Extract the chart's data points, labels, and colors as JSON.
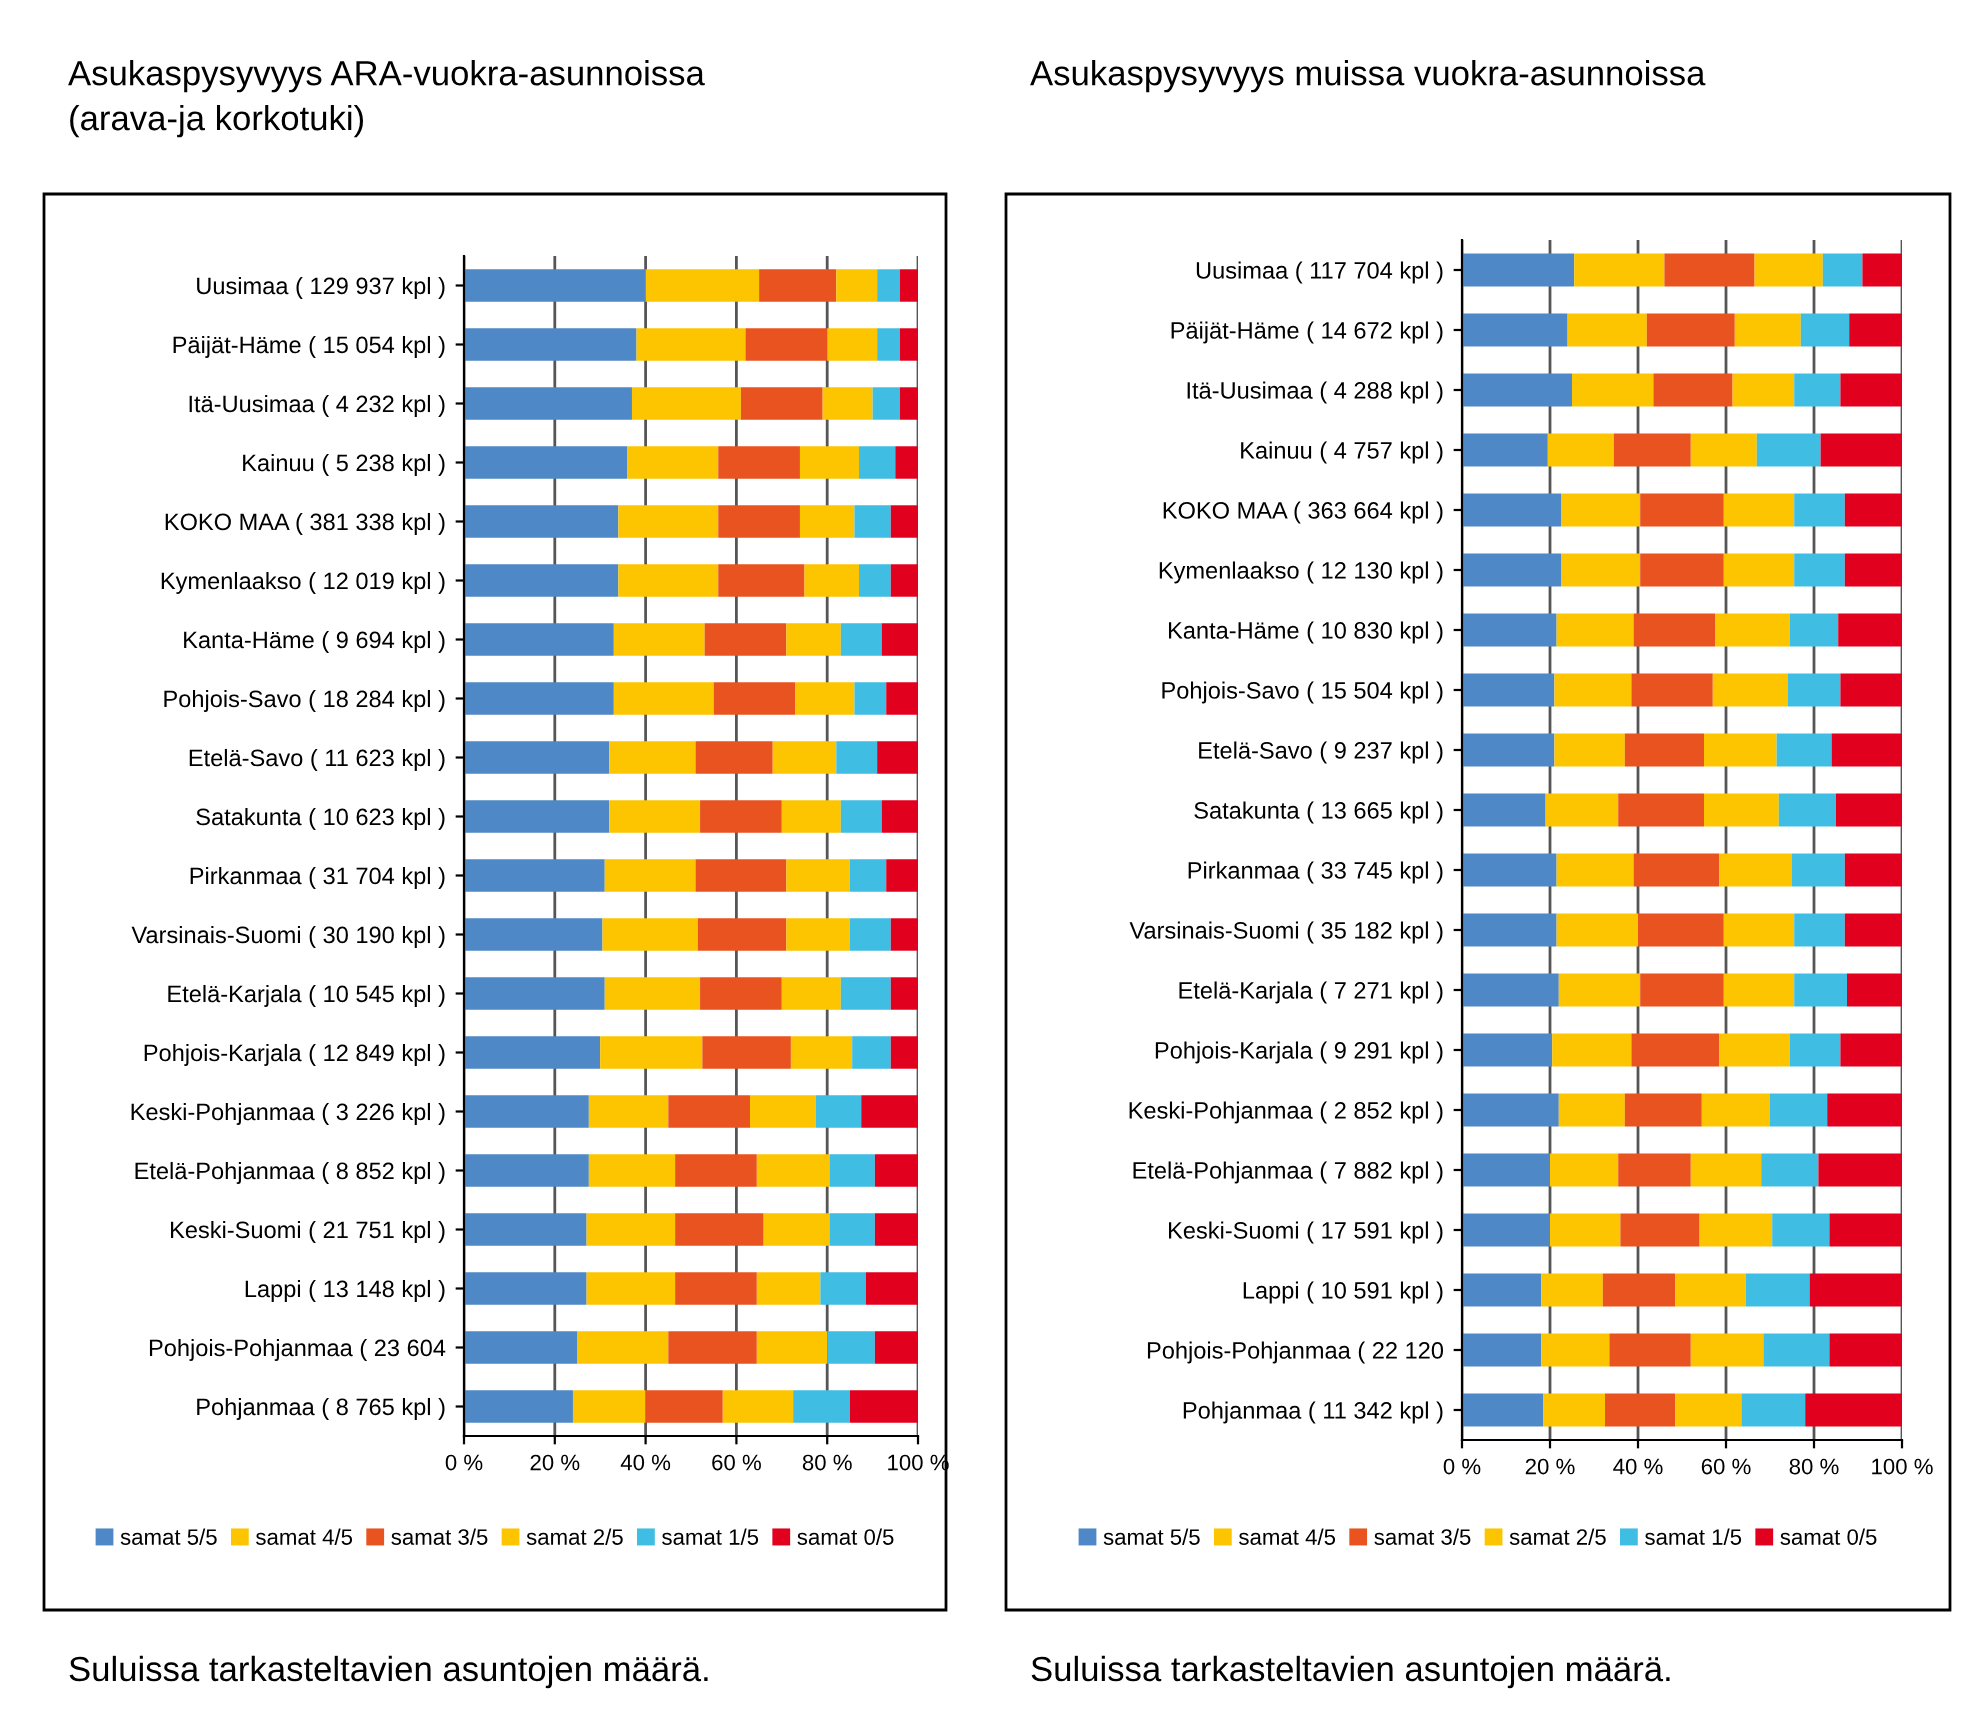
{
  "chart_data": [
    {
      "type": "bar",
      "orientation": "horizontal",
      "stacked": true,
      "title": "Asukaspysyvyys ARA-vuokra-asunnoissa\n(arava-ja korkotuki)",
      "categories": [
        "Uusimaa ( 129 937 kpl )",
        "Päijät-Häme ( 15 054 kpl )",
        "Itä-Uusimaa ( 4 232 kpl )",
        "Kainuu ( 5 238 kpl )",
        "KOKO MAA ( 381 338 kpl )",
        "Kymenlaakso ( 12 019 kpl )",
        "Kanta-Häme ( 9 694 kpl )",
        "Pohjois-Savo ( 18 284 kpl )",
        "Etelä-Savo ( 11 623 kpl )",
        "Satakunta ( 10 623 kpl )",
        "Pirkanmaa ( 31 704 kpl )",
        "Varsinais-Suomi ( 30 190 kpl )",
        "Etelä-Karjala ( 10 545 kpl )",
        "Pohjois-Karjala ( 12 849 kpl )",
        "Keski-Pohjanmaa ( 3 226 kpl )",
        "Etelä-Pohjanmaa ( 8 852 kpl )",
        "Keski-Suomi ( 21 751 kpl )",
        "Lappi ( 13 148 kpl )",
        "Pohjois-Pohjanmaa ( 23 604",
        "Pohjanmaa ( 8 765 kpl )"
      ],
      "series": [
        {
          "name": "samat 5/5",
          "color": "#4f88c6",
          "values": [
            40,
            38,
            37,
            36,
            34,
            34,
            33,
            33,
            32,
            32,
            31,
            30.5,
            31,
            30,
            27.5,
            27.5,
            27,
            27,
            25,
            24
          ]
        },
        {
          "name": "samat 4/5",
          "color": "#fcc500",
          "values": [
            25,
            24,
            24,
            20,
            22,
            22,
            20,
            22,
            19,
            20,
            20,
            21,
            21,
            22.5,
            17.5,
            19,
            19.5,
            19.5,
            20,
            16
          ]
        },
        {
          "name": "samat 3/5",
          "color": "#e8531f",
          "values": [
            17,
            18,
            18,
            18,
            18,
            19,
            18,
            18,
            17,
            18,
            20,
            19.5,
            18,
            19.5,
            18,
            18,
            19.5,
            18,
            19.5,
            17
          ]
        },
        {
          "name": "samat 2/5",
          "color": "#fcc500",
          "values": [
            9,
            11,
            11,
            13,
            12,
            12,
            12,
            13,
            14,
            13,
            14,
            14,
            13,
            13.5,
            14.5,
            16,
            14.5,
            14,
            15.5,
            15.5
          ]
        },
        {
          "name": "samat 1/5",
          "color": "#3fbde3",
          "values": [
            5,
            5,
            6,
            8,
            8,
            7,
            9,
            7,
            9,
            9,
            8,
            9,
            11,
            8.5,
            10,
            10,
            10,
            10,
            10.5,
            12.5
          ]
        },
        {
          "name": "samat 0/5",
          "color": "#e2001f",
          "values": [
            4,
            4,
            4,
            5,
            6,
            6,
            8,
            7,
            9,
            8,
            7,
            6,
            6,
            6,
            12.5,
            9.5,
            9.5,
            11.5,
            9.5,
            15
          ]
        }
      ],
      "xlim": [
        0,
        100
      ],
      "xticks": [
        {
          "value": 0,
          "label": "0 %"
        },
        {
          "value": 20,
          "label": "20 %"
        },
        {
          "value": 40,
          "label": "40 %"
        },
        {
          "value": 60,
          "label": "60 %"
        },
        {
          "value": 80,
          "label": "80 %"
        },
        {
          "value": 100,
          "label": "100 %"
        }
      ],
      "grid": "x",
      "legend": "bottom",
      "annotations": [
        "Suluissa tarkasteltavien asuntojen määrä."
      ]
    },
    {
      "type": "bar",
      "orientation": "horizontal",
      "stacked": true,
      "title": "Asukaspysyvyys muissa vuokra-asunnoissa",
      "categories": [
        "Uusimaa ( 117 704 kpl )",
        "Päijät-Häme ( 14 672 kpl )",
        "Itä-Uusimaa ( 4 288 kpl )",
        "Kainuu ( 4 757 kpl )",
        "KOKO MAA ( 363 664 kpl )",
        "Kymenlaakso ( 12 130 kpl )",
        "Kanta-Häme ( 10 830 kpl )",
        "Pohjois-Savo ( 15 504 kpl )",
        "Etelä-Savo ( 9 237 kpl )",
        "Satakunta ( 13 665 kpl )",
        "Pirkanmaa ( 33 745 kpl )",
        "Varsinais-Suomi ( 35 182 kpl )",
        "Etelä-Karjala ( 7 271 kpl )",
        "Pohjois-Karjala ( 9 291 kpl )",
        "Keski-Pohjanmaa ( 2 852 kpl )",
        "Etelä-Pohjanmaa ( 7 882 kpl )",
        "Keski-Suomi ( 17 591 kpl )",
        "Lappi ( 10 591 kpl )",
        "Pohjois-Pohjanmaa ( 22 120",
        "Pohjanmaa ( 11 342 kpl )"
      ],
      "series": [
        {
          "name": "samat 5/5",
          "color": "#4f88c6",
          "values": [
            25.5,
            24,
            25,
            19.5,
            22.5,
            22.5,
            21.5,
            21,
            21,
            19,
            21.5,
            21.5,
            22,
            20.5,
            22,
            20,
            20,
            18,
            18,
            18.5
          ]
        },
        {
          "name": "samat 4/5",
          "color": "#fcc500",
          "values": [
            20.5,
            18,
            18.5,
            15,
            18,
            18,
            17.5,
            17.5,
            16,
            16.5,
            17.5,
            18.5,
            18.5,
            18,
            15,
            15.5,
            16,
            14,
            15.5,
            14
          ]
        },
        {
          "name": "samat 3/5",
          "color": "#e8531f",
          "values": [
            20.5,
            20,
            18,
            17.5,
            19,
            19,
            18.5,
            18.5,
            18,
            19.5,
            19.5,
            19.5,
            19,
            20,
            17.5,
            16.5,
            18,
            16.5,
            18.5,
            16
          ]
        },
        {
          "name": "samat 2/5",
          "color": "#fcc500",
          "values": [
            15.5,
            15,
            14,
            15,
            16,
            16,
            17,
            17,
            16.5,
            17,
            16.5,
            16,
            16,
            16,
            15.5,
            16,
            16.5,
            16,
            16.5,
            15
          ]
        },
        {
          "name": "samat 1/5",
          "color": "#3fbde3",
          "values": [
            9,
            11,
            10.5,
            14.5,
            11.5,
            11.5,
            11,
            12,
            12.5,
            13,
            12,
            11.5,
            12,
            11.5,
            13,
            13,
            13,
            14.5,
            15,
            14.5
          ]
        },
        {
          "name": "samat 0/5",
          "color": "#e2001f",
          "values": [
            9,
            12,
            14,
            18.5,
            13,
            13,
            14.5,
            14,
            16,
            15,
            13,
            13,
            12.5,
            14,
            17,
            19,
            16.5,
            21,
            16.5,
            22
          ]
        }
      ],
      "xlim": [
        0,
        100
      ],
      "xticks": [
        {
          "value": 0,
          "label": "0 %"
        },
        {
          "value": 20,
          "label": "20 %"
        },
        {
          "value": 40,
          "label": "40 %"
        },
        {
          "value": 60,
          "label": "60 %"
        },
        {
          "value": 80,
          "label": "80 %"
        },
        {
          "value": 100,
          "label": "100 %"
        }
      ],
      "grid": "x",
      "legend": "bottom",
      "annotations": [
        "Suluissa tarkasteltavien asuntojen määrä."
      ]
    }
  ]
}
